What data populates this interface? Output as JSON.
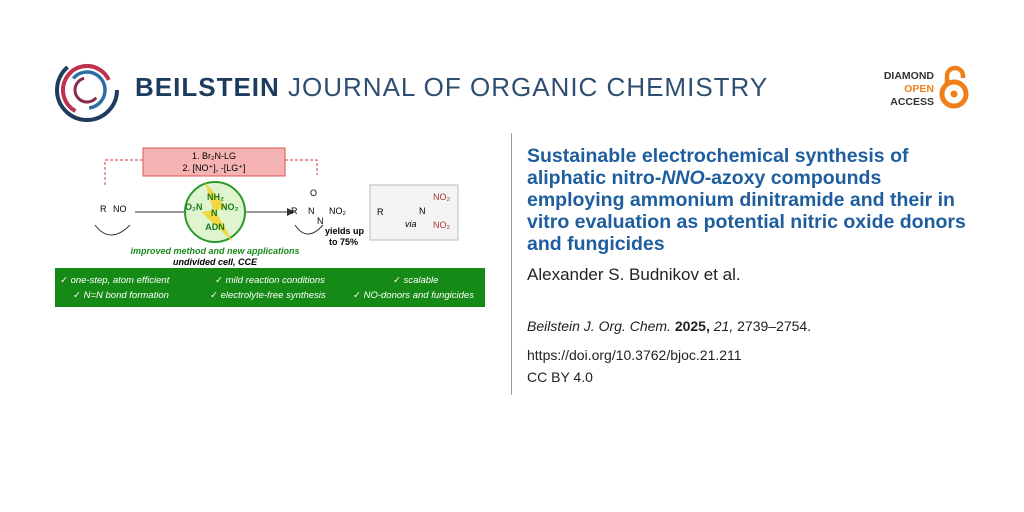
{
  "header": {
    "journal_bold": "BEILSTEIN",
    "journal_rest": "JOURNAL OF ORGANIC CHEMISTRY",
    "badge": [
      "DIAMOND",
      "OPEN",
      "ACCESS"
    ]
  },
  "graphic": {
    "step1": "1. Br₂N-LG",
    "step2": "2. [NO⁺], -[LG⁺]",
    "reactant_r": "R",
    "reactant_no": "NO",
    "adn_o2n": "O₂N",
    "adn_nh2": "NH₂",
    "adn_n": "N",
    "adn_no2": "NO₂",
    "adn_label": "ADN",
    "product_o": "O",
    "product_r": "R",
    "product_n1": "N",
    "product_n2": "N",
    "product_no2": "NO₂",
    "yields": [
      "yields up",
      "to 75%"
    ],
    "inset_r": "R",
    "inset_via": "via",
    "inset_n": "N",
    "inset_no2_top": "NO₂",
    "inset_no2_bottom": "NO₂",
    "caption": "improved method and new applications",
    "conditions": "undivided cell, CCE",
    "features": [
      "✓ one-step, atom efficient",
      "✓ N=N bond formation",
      "✓ mild reaction conditions",
      "✓ electrolyte-free synthesis",
      "✓ scalable",
      "✓ NO-donors and fungicides"
    ]
  },
  "article": {
    "title_start": "Sustainable electrochemical synthesis of aliphatic nitro-",
    "title_italic": "NNO",
    "title_end": "-azoxy compounds employing ammonium dinitramide and their in vitro evaluation as potential nitric oxide donors and fungicides",
    "authors": "Alexander S. Budnikov et al.",
    "citation_journal": "Beilstein J. Org. Chem.",
    "citation_year": "2025,",
    "citation_volume": "21,",
    "citation_pages": "2739–2754.",
    "doi": "https://doi.org/10.3762/bjoc.21.211",
    "license": "CC BY 4.0"
  }
}
